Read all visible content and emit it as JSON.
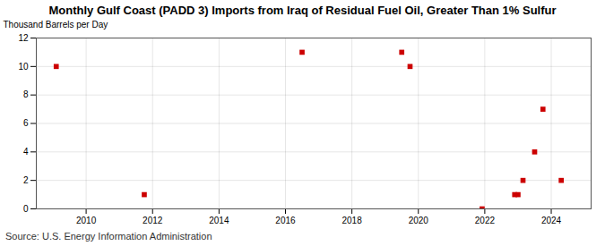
{
  "chart_data": {
    "type": "scatter",
    "title": "Monthly Gulf Coast (PADD 3) Imports from Iraq of Residual Fuel Oil, Greater Than 1% Sulfur",
    "ylabel": "Thousand Barrels per Day",
    "source": "Source: U.S. Energy Information Administration",
    "x": [
      2009.1,
      2011.75,
      2016.5,
      2019.5,
      2019.75,
      2021.92,
      2022.9,
      2023.0,
      2023.15,
      2023.5,
      2023.75,
      2024.3
    ],
    "values": [
      10,
      1,
      11,
      11,
      10,
      0,
      1,
      1,
      2,
      4,
      7,
      2
    ],
    "color": "#cc0000",
    "marker": "square",
    "xlim": [
      2008.5,
      2025.2
    ],
    "xticks": [
      2010,
      2012,
      2014,
      2016,
      2018,
      2020,
      2022,
      2024
    ],
    "ylim": [
      0,
      12
    ],
    "yticks": [
      0,
      2,
      4,
      6,
      8,
      10,
      12
    ],
    "grid": true
  }
}
